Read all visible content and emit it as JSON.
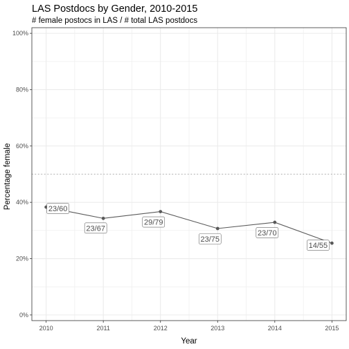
{
  "chart_data": {
    "type": "line",
    "title": "LAS Postdocs by Gender, 2010-2015",
    "subtitle": "# female postocs in LAS / # total LAS postdocs",
    "xlabel": "Year",
    "ylabel": "Percentage female",
    "x": [
      2010,
      2011,
      2012,
      2013,
      2014,
      2015
    ],
    "x_tick_labels": [
      "2010",
      "2011",
      "2012",
      "2013",
      "2014",
      "2015"
    ],
    "y": [
      0.383,
      0.343,
      0.367,
      0.307,
      0.329,
      0.255
    ],
    "point_labels": [
      "23/60",
      "23/67",
      "29/79",
      "23/75",
      "23/70",
      "14/55"
    ],
    "y_ticks": [
      0,
      0.2,
      0.4,
      0.6,
      0.8,
      1.0
    ],
    "y_tick_labels": [
      "0%",
      "20%",
      "40%",
      "60%",
      "80%",
      "100%"
    ],
    "ylim": [
      -0.02,
      1.02
    ],
    "xlim": [
      2009.75,
      2015.25
    ],
    "reference_line": {
      "y": 0.5,
      "style": "dotted"
    },
    "grid": true,
    "colors": {
      "line": "#595959",
      "point": "#595959",
      "grid": "#ebebeb",
      "panel_border": "#333333",
      "reference": "#a6a6a6"
    }
  }
}
